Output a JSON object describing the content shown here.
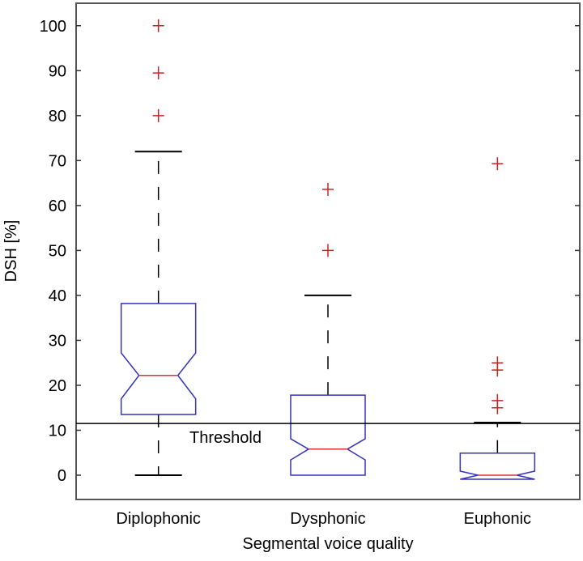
{
  "chart_data": {
    "type": "boxplot",
    "title": "",
    "xlabel": "Segmental voice quality",
    "ylabel": "DSH [%]",
    "ylim": [
      -5.4,
      105
    ],
    "yticks": [
      0,
      10,
      20,
      30,
      40,
      50,
      60,
      70,
      80,
      90,
      100
    ],
    "grid": false,
    "notched": true,
    "categories": [
      "Diplophonic",
      "Dysphonic",
      "Euphonic"
    ],
    "boxes": [
      {
        "whisker_low": 0,
        "q1": 13.5,
        "notch_low": 17,
        "median": 22.2,
        "notch_high": 27.2,
        "q3": 38.2,
        "whisker_high": 72,
        "outliers": [
          80,
          89.5,
          100
        ]
      },
      {
        "whisker_low": 0,
        "q1": 0,
        "notch_low": 3.4,
        "median": 5.8,
        "notch_high": 8.1,
        "q3": 17.8,
        "whisker_high": 40,
        "outliers": [
          50,
          63.6
        ]
      },
      {
        "whisker_low": 0,
        "q1": 0,
        "notch_low": -0.9,
        "median": 0,
        "notch_high": 0.9,
        "q3": 4.9,
        "whisker_high": 11.7,
        "outliers": [
          15,
          16.6,
          23.4,
          25,
          69.3
        ]
      }
    ],
    "reference_line": {
      "value": 11.5,
      "label": "Threshold"
    },
    "colors": {
      "box": "#3333bb",
      "median": "#dd3333",
      "outlier": "#cc2222",
      "whisker": "#000000"
    }
  }
}
